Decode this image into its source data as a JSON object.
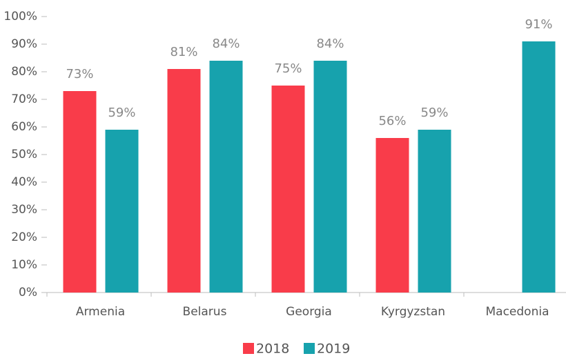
{
  "chart_data": {
    "type": "bar",
    "categories": [
      "Armenia",
      "Belarus",
      "Georgia",
      "Kyrgyzstan",
      "Macedonia"
    ],
    "series": [
      {
        "name": "2018",
        "color": "#f93c4a",
        "values": [
          73,
          81,
          75,
          56,
          null
        ],
        "value_labels": [
          "73%",
          "81%",
          "75%",
          "56%",
          null
        ]
      },
      {
        "name": "2019",
        "color": "#17a2ad",
        "values": [
          59,
          84,
          84,
          59,
          91
        ],
        "value_labels": [
          "59%",
          "84%",
          "84%",
          "59%",
          "91%"
        ]
      }
    ],
    "ylim": [
      0,
      100
    ],
    "yticks": [
      {
        "value": 0,
        "label": "0%"
      },
      {
        "value": 10,
        "label": "10%"
      },
      {
        "value": 20,
        "label": "20%"
      },
      {
        "value": 30,
        "label": "30%"
      },
      {
        "value": 40,
        "label": "40%"
      },
      {
        "value": 50,
        "label": "50%"
      },
      {
        "value": 60,
        "label": "60%"
      },
      {
        "value": 70,
        "label": "70%"
      },
      {
        "value": 80,
        "label": "80%"
      },
      {
        "value": 90,
        "label": "90%"
      },
      {
        "value": 100,
        "label": "100%"
      }
    ],
    "legend": "bottom"
  }
}
